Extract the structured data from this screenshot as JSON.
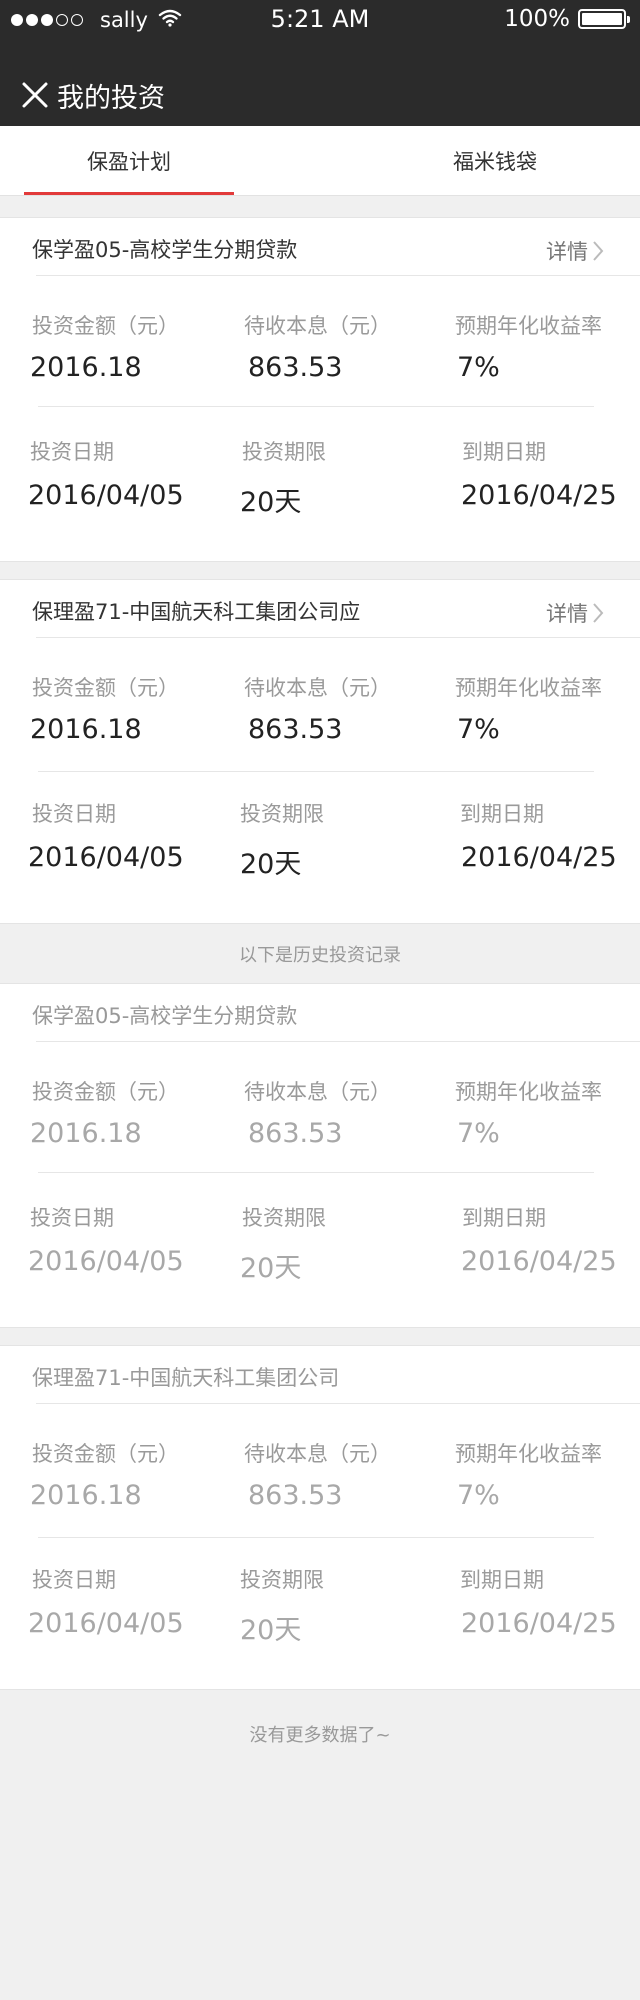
{
  "status_bar": {
    "carrier": "sally",
    "time": "5:21 AM",
    "battery": "100%"
  },
  "nav": {
    "title": "我的投资",
    "close_icon": "close-icon"
  },
  "tabs": [
    {
      "label": "保盈计划",
      "active": true
    },
    {
      "label": "福米钱袋",
      "active": false
    }
  ],
  "labels": {
    "amount": "投资金额（元）",
    "interest": "待收本息（元）",
    "rate": "预期年化收益率",
    "date": "投资日期",
    "term": "投资期限",
    "due": "到期日期",
    "detail": "详情"
  },
  "current_investments": [
    {
      "title": "保学盈05-高校学生分期贷款",
      "amount": "2016.18",
      "interest": "863.53",
      "rate": "7%",
      "date": "2016/04/05",
      "term": "20天",
      "due": "2016/04/25"
    },
    {
      "title": "保理盈71-中国航天科工集团公司应",
      "amount": "2016.18",
      "interest": "863.53",
      "rate": "7%",
      "date": "2016/04/05",
      "term": "20天",
      "due": "2016/04/25"
    }
  ],
  "history_divider": "以下是历史投资记录",
  "history_investments": [
    {
      "title": "保学盈05-高校学生分期贷款",
      "amount": "2016.18",
      "interest": "863.53",
      "rate": "7%",
      "date": "2016/04/05",
      "term": "20天",
      "due": "2016/04/25"
    },
    {
      "title": "保理盈71-中国航天科工集团公司",
      "amount": "2016.18",
      "interest": "863.53",
      "rate": "7%",
      "date": "2016/04/05",
      "term": "20天",
      "due": "2016/04/25"
    }
  ],
  "footer": "没有更多数据了~",
  "colors": {
    "topbar": "#2b2b2b",
    "accent": "#e23a3a",
    "background": "#f0f0f0"
  }
}
